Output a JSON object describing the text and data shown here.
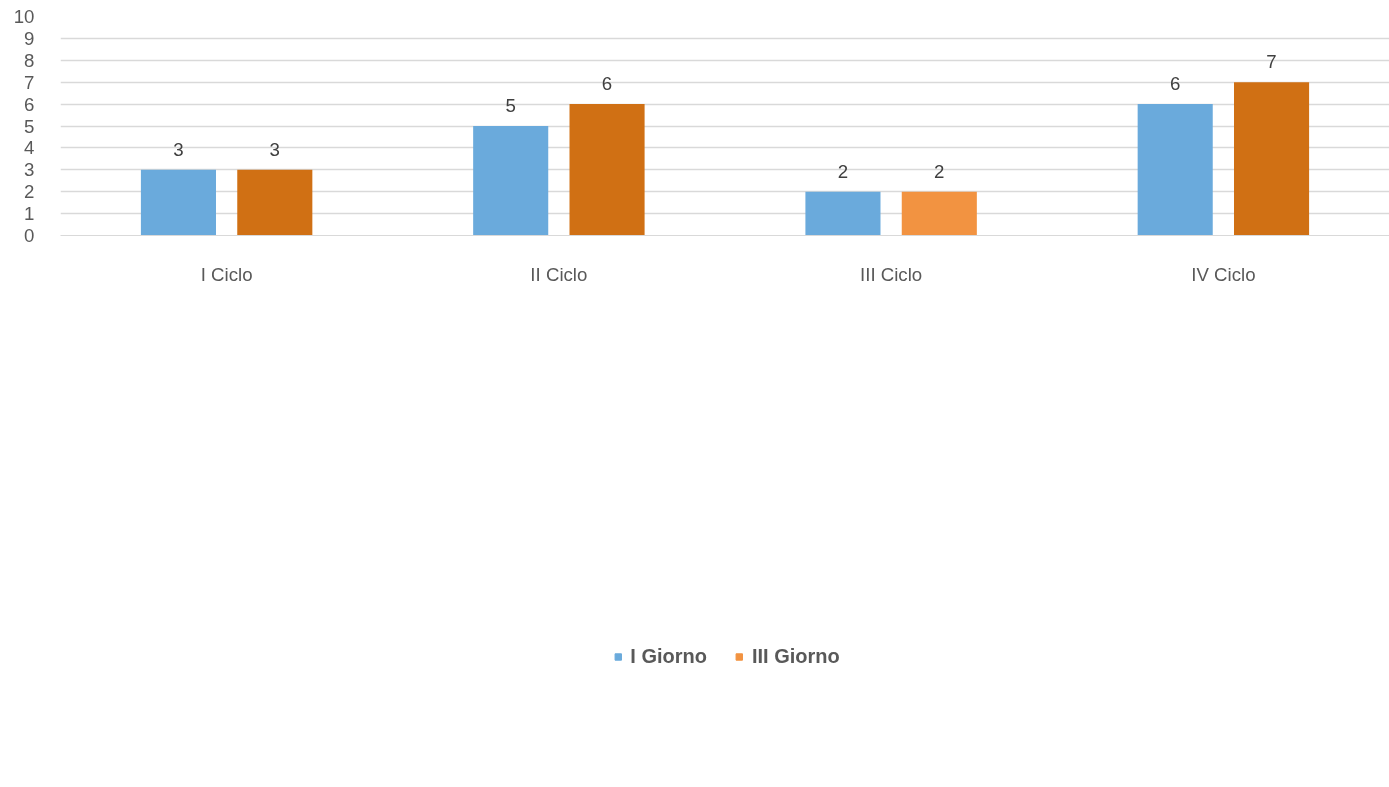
{
  "chart_data": {
    "type": "bar",
    "categories": [
      "I Ciclo",
      "II Ciclo",
      "III Ciclo",
      "IV Ciclo"
    ],
    "series": [
      {
        "name": "I Giorno",
        "color": "#6aaadc",
        "values": [
          3,
          5,
          2,
          6
        ]
      },
      {
        "name": "III Giorno",
        "color": "#f29341",
        "colors": [
          "#d07014",
          "#d07014",
          "#f29341",
          "#d07014"
        ],
        "values": [
          3,
          6,
          2,
          7
        ]
      }
    ],
    "ylim": [
      0,
      10
    ],
    "yticks": [
      0,
      1,
      2,
      3,
      4,
      5,
      6,
      7,
      8,
      9,
      10
    ],
    "grid": "y",
    "legend": "bottom",
    "data_labels": true
  }
}
